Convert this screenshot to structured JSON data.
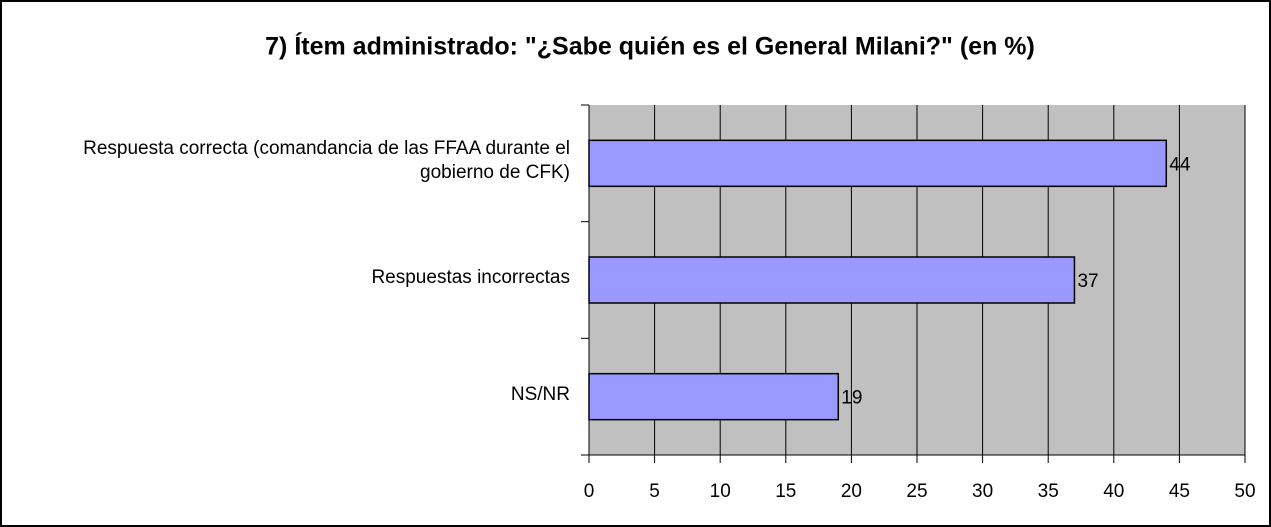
{
  "chart_data": {
    "type": "bar",
    "orientation": "horizontal",
    "title": "7) Ítem administrado: \"¿Sabe quién es el General Milani?\" (en %)",
    "categories": [
      "Respuesta correcta (comandancia de las FFAA durante el gobierno de CFK)",
      "Respuestas incorrectas",
      "NS/NR"
    ],
    "values": [
      44,
      37,
      19
    ],
    "color": "#9999ff",
    "xlim": [
      0,
      50
    ],
    "xticks": [
      0,
      5,
      10,
      15,
      20,
      25,
      30,
      35,
      40,
      45,
      50
    ],
    "grid": true
  }
}
